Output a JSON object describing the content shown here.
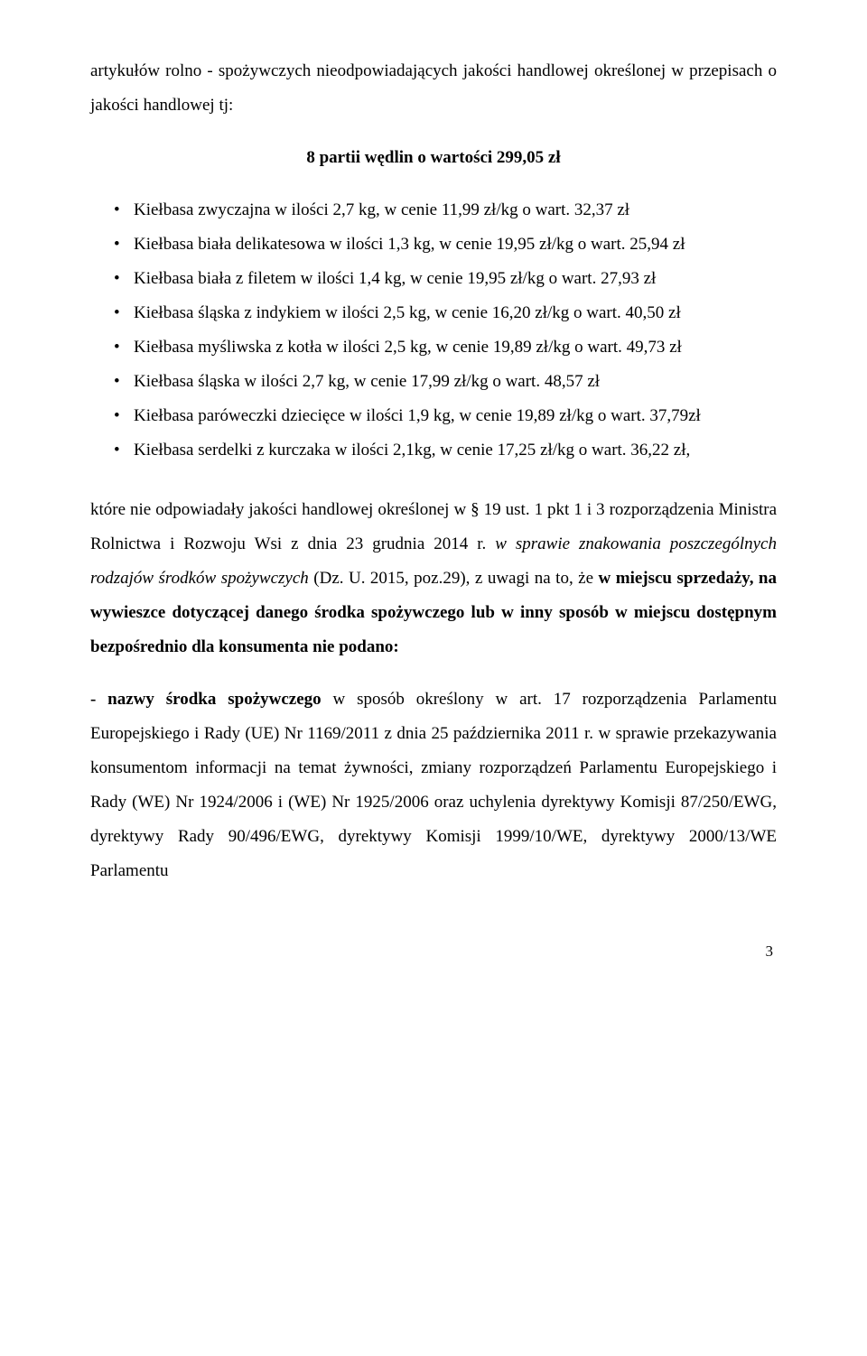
{
  "intro": {
    "line1": "artykułów rolno - spożywczych nieodpowiadających jakości handlowej określonej w przepisach o jakości handlowej tj:"
  },
  "bold_summary": "8 partii wędlin o wartości 299,05 zł",
  "bullets": [
    "Kiełbasa zwyczajna  w ilości 2,7 kg, w cenie 11,99 zł/kg o wart. 32,37 zł",
    "Kiełbasa biała delikatesowa   w ilości 1,3 kg, w cenie 19,95 zł/kg o wart. 25,94 zł",
    "Kiełbasa biała z filetem   w ilości 1,4 kg, w cenie 19,95 zł/kg o wart. 27,93 zł",
    "Kiełbasa śląska z indykiem  w ilości 2,5 kg, w cenie 16,20 zł/kg o wart. 40,50 zł",
    "Kiełbasa myśliwska z kotła  w ilości 2,5 kg, w cenie 19,89 zł/kg o wart. 49,73 zł",
    "Kiełbasa śląska w ilości 2,7 kg, w cenie 17,99 zł/kg o wart. 48,57 zł",
    "Kiełbasa paróweczki dziecięce  w ilości 1,9 kg, w cenie 19,89 zł/kg o wart. 37,79zł",
    "Kiełbasa serdelki z kurczaka w ilości 2,1kg, w cenie 17,25 zł/kg o wart. 36,22 zł,"
  ],
  "para2": {
    "pre": "które nie odpowiadały jakości handlowej określonej w § 19 ust. 1 pkt 1 i 3 rozporządzenia Ministra Rolnictwa i Rozwoju Wsi z dnia 23 grudnia 2014 r. ",
    "italic": "w sprawie znakowania poszczególnych rodzajów środków spożywczych",
    "post1": " (Dz. U. 2015, poz.29), z uwagi na to, że ",
    "bold": "w miejscu sprzedaży, na wywieszce dotyczącej danego środka spożywczego lub w inny sposób w miejscu dostępnym bezpośrednio dla konsumenta nie podano:"
  },
  "para3": {
    "bold_lead": "- nazwy środka spożywczego",
    "rest": " w sposób określony w art. 17 rozporządzenia Parlamentu Europejskiego i Rady (UE)  Nr 1169/2011 z dnia  25 października 2011 r. w sprawie przekazywania konsumentom informacji na temat żywności, zmiany rozporządzeń Parlamentu Europejskiego i Rady (WE) Nr 1924/2006 i (WE) Nr 1925/2006 oraz uchylenia dyrektywy Komisji 87/250/EWG, dyrektywy Rady 90/496/EWG, dyrektywy Komisji 1999/10/WE, dyrektywy 2000/13/WE Parlamentu"
  },
  "page_number": "3"
}
